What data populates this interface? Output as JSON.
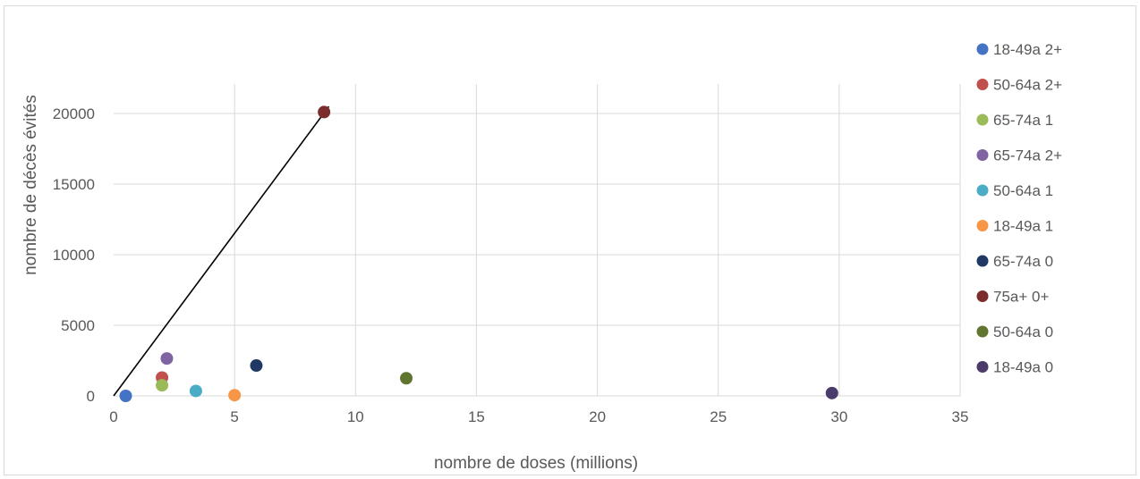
{
  "chart_data": {
    "type": "scatter",
    "xlabel": "nombre de doses (millions)",
    "ylabel": "nombre de décès évités",
    "xlim": [
      0,
      35
    ],
    "ylim": [
      0,
      20000
    ],
    "xticks": [
      0,
      5,
      10,
      15,
      20,
      25,
      30,
      35
    ],
    "yticks": [
      0,
      5000,
      10000,
      15000,
      20000
    ],
    "grid": true,
    "legend_position": "right",
    "series": [
      {
        "name": "18-49a 2+",
        "color": "#4472c4",
        "points": [
          [
            0.5,
            0
          ]
        ]
      },
      {
        "name": "50-64a 2+",
        "color": "#c0504d",
        "points": [
          [
            2.0,
            1300
          ]
        ]
      },
      {
        "name": "65-74a 1",
        "color": "#9bbb59",
        "points": [
          [
            2.0,
            750
          ]
        ]
      },
      {
        "name": "65-74a 2+",
        "color": "#8064a2",
        "points": [
          [
            2.2,
            2650
          ]
        ]
      },
      {
        "name": "50-64a 1",
        "color": "#4bacc6",
        "points": [
          [
            3.4,
            350
          ]
        ]
      },
      {
        "name": "18-49a 1",
        "color": "#f79646",
        "points": [
          [
            5.0,
            50
          ]
        ]
      },
      {
        "name": "65-74a 0",
        "color": "#1f3864",
        "points": [
          [
            5.9,
            2150
          ]
        ]
      },
      {
        "name": "75a+ 0+",
        "color": "#7b2c2c",
        "points": [
          [
            8.7,
            20100
          ]
        ]
      },
      {
        "name": "50-64a 0",
        "color": "#5f7530",
        "points": [
          [
            12.1,
            1250
          ]
        ]
      },
      {
        "name": "18-49a 0",
        "color": "#4b3b6b",
        "points": [
          [
            29.7,
            200
          ]
        ]
      }
    ],
    "reference_line": {
      "from": [
        0,
        0
      ],
      "to": [
        8.9,
        20500
      ],
      "color": "#000000"
    }
  }
}
